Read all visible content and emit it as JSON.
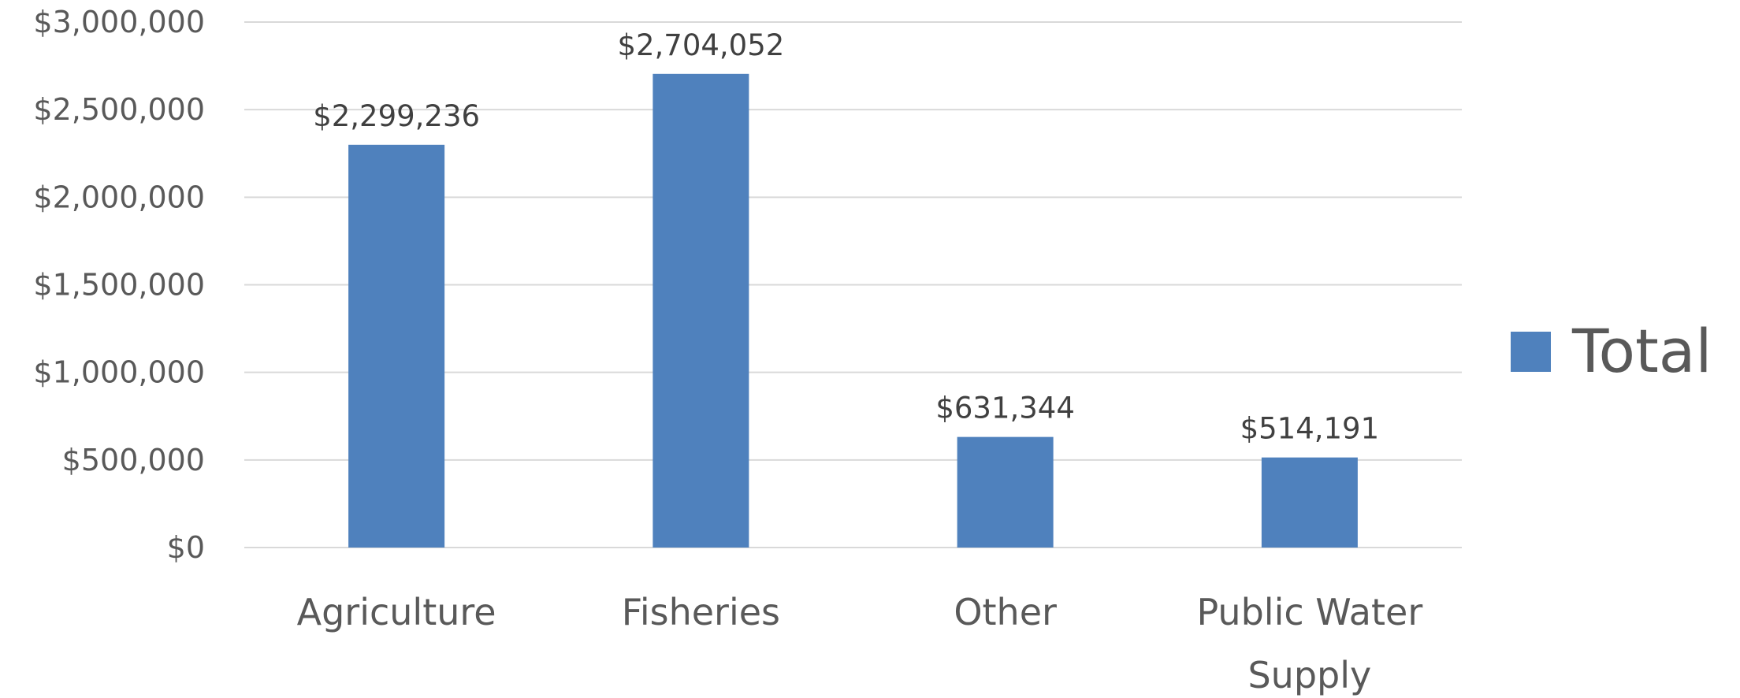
{
  "chart_data": {
    "type": "bar",
    "categories": [
      "Agriculture",
      "Fisheries",
      "Other",
      "Public Water Supply"
    ],
    "category_label_lines": [
      [
        "Agriculture"
      ],
      [
        "Fisheries"
      ],
      [
        "Other"
      ],
      [
        "Public Water",
        "Supply"
      ]
    ],
    "series": [
      {
        "name": "Total",
        "color": "#4f81bd",
        "values": [
          2299236,
          2704052,
          631344,
          514191
        ],
        "data_labels": [
          "$2,299,236",
          "$2,704,052",
          "$631,344",
          "$514,191"
        ]
      }
    ],
    "ylim": [
      0,
      3000000
    ],
    "yticks": [
      0,
      500000,
      1000000,
      1500000,
      2000000,
      2500000,
      3000000
    ],
    "ytick_labels": [
      "$0",
      "$500,000",
      "$1,000,000",
      "$1,500,000",
      "$2,000,000",
      "$2,500,000",
      "$3,000,000"
    ],
    "grid": true,
    "legend": {
      "position": "right",
      "entries": [
        "Total"
      ]
    },
    "title": "",
    "xlabel": "",
    "ylabel": ""
  }
}
